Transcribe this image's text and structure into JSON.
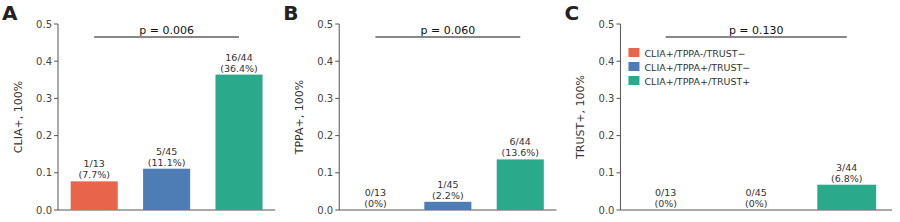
{
  "chart_data": [
    {
      "type": "bar",
      "title": "A",
      "y_label": "CLIA+, 100%",
      "annotations": [
        "p = 0.006"
      ],
      "categories": [
        null
      ],
      "series": [
        {
          "color": "#E8644A",
          "values": [
            0.077
          ],
          "value_labels": [
            "1/13\n(7.7%)"
          ]
        },
        {
          "color": "#4E7DB5",
          "values": [
            0.111
          ],
          "value_labels": [
            "5/45\n(11.1%)"
          ]
        },
        {
          "color": "#2AAA8A",
          "values": [
            0.364
          ],
          "value_labels": [
            "16/44\n(36.4%)"
          ]
        }
      ],
      "ylim": [
        0,
        0.5
      ],
      "yticks": [
        {
          "value": 0,
          "label": "0.0"
        },
        0.1,
        0.2,
        0.3,
        0.4,
        0.5
      ],
      "data_labels": true,
      "tick_labels": "y",
      "grid": false
    },
    {
      "type": "bar",
      "title": "B",
      "y_label": "TPPA+, 100%",
      "annotations": [
        "p = 0.060"
      ],
      "categories": [
        null
      ],
      "series": [
        {
          "color": "#E8644A",
          "values": [
            0.0
          ],
          "value_labels": [
            "0/13\n(0%)"
          ]
        },
        {
          "color": "#4E7DB5",
          "values": [
            0.022
          ],
          "value_labels": [
            "1/45\n(2.2%)"
          ]
        },
        {
          "color": "#2AAA8A",
          "values": [
            0.136
          ],
          "value_labels": [
            "6/44\n(13.6%)"
          ]
        }
      ],
      "ylim": [
        0,
        0.5
      ],
      "yticks": [
        {
          "value": 0,
          "label": "0.0"
        },
        0.1,
        0.2,
        0.3,
        0.4,
        0.5
      ],
      "data_labels": true,
      "tick_labels": "y",
      "grid": false
    },
    {
      "type": "bar",
      "title": "C",
      "y_label": "TRUST+, 100%",
      "annotations": [
        "p = 0.130"
      ],
      "categories": [
        null
      ],
      "series": [
        {
          "name": "CLIA+/TPPA-/TRUST−",
          "color": "#E8644A",
          "values": [
            0.0
          ],
          "value_labels": [
            "0/13\n(0%)"
          ]
        },
        {
          "name": "CLIA+/TPPA+/TRUST−",
          "color": "#4E7DB5",
          "values": [
            0.0
          ],
          "value_labels": [
            "0/45\n(0%)"
          ]
        },
        {
          "name": "CLIA+/TPPA+/TRUST+",
          "color": "#2AAA8A",
          "values": [
            0.068
          ],
          "value_labels": [
            "3/44\n(6.8%)"
          ]
        }
      ],
      "ylim": [
        0,
        0.5
      ],
      "yticks": [
        {
          "value": 0,
          "label": "0.0"
        },
        0.1,
        0.2,
        0.3,
        0.4,
        0.5
      ],
      "data_labels": true,
      "tick_labels": "y",
      "grid": false,
      "legend": "upper left"
    }
  ]
}
